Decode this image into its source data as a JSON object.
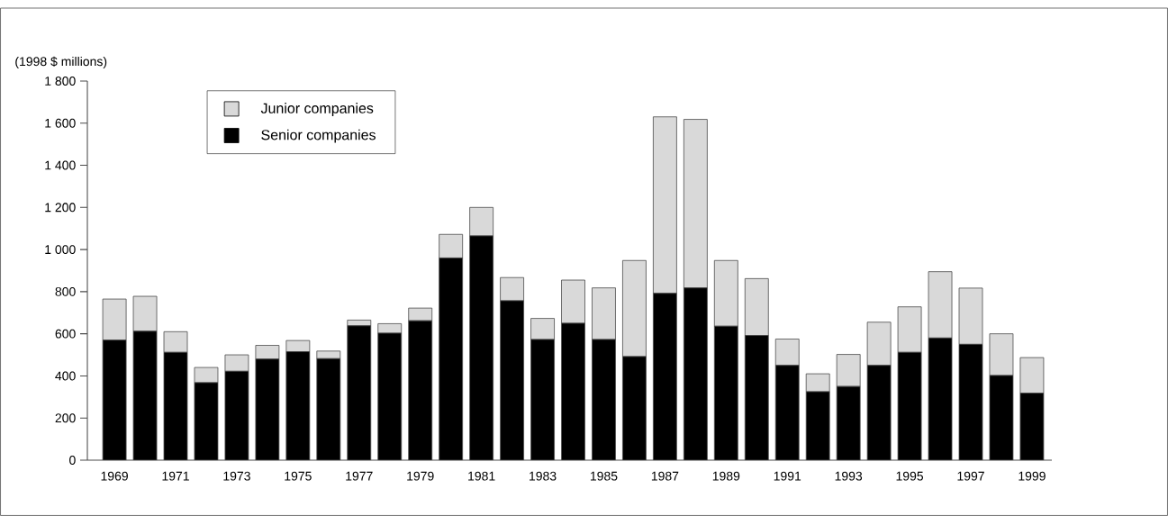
{
  "chart_data": {
    "type": "bar",
    "stacked": true,
    "ylabel": "(1998 $ millions)",
    "categories": [
      "1969",
      null,
      "1971",
      null,
      "1973",
      null,
      "1975",
      null,
      "1977",
      null,
      "1979",
      null,
      "1981",
      null,
      "1983",
      null,
      "1985",
      null,
      "1987",
      null,
      "1989",
      null,
      "1991",
      null,
      "1993",
      null,
      "1995",
      null,
      "1997",
      null,
      "1999"
    ],
    "series": [
      {
        "name": "Senior companies",
        "color": "#000000",
        "values": [
          570,
          612,
          512,
          368,
          422,
          480,
          515,
          482,
          638,
          603,
          662,
          960,
          1065,
          757,
          573,
          650,
          573,
          492,
          792,
          818,
          636,
          592,
          450,
          325,
          350,
          450,
          512,
          580,
          550,
          402,
          318
        ]
      },
      {
        "name": "Junior companies",
        "color": "#d9d9d9",
        "values": [
          195,
          166,
          98,
          72,
          78,
          65,
          53,
          36,
          27,
          45,
          60,
          112,
          135,
          110,
          100,
          205,
          245,
          456,
          838,
          800,
          312,
          270,
          125,
          85,
          152,
          205,
          216,
          315,
          267,
          198,
          169
        ]
      }
    ],
    "ylim": [
      0,
      1800
    ],
    "yticks": [
      0,
      200,
      400,
      600,
      800,
      {
        "value": 1000,
        "label": "1 000"
      },
      {
        "value": 1200,
        "label": "1 200"
      },
      {
        "value": 1400,
        "label": "1 400"
      },
      {
        "value": 1600,
        "label": "1 600"
      },
      {
        "value": 1800,
        "label": "1 800"
      }
    ],
    "legend": "top left",
    "grid": false
  }
}
